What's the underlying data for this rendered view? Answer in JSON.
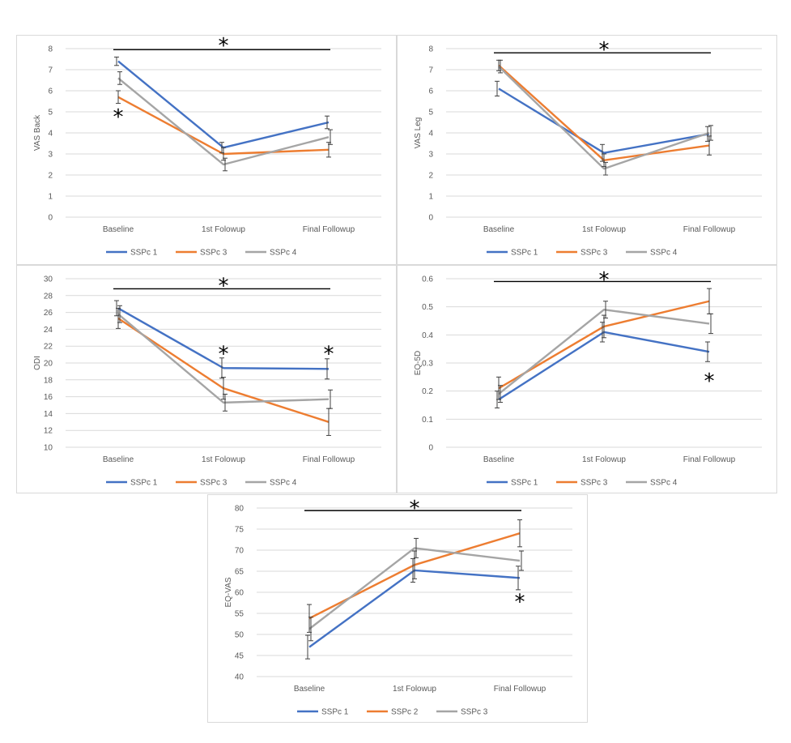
{
  "colors": {
    "series1": "#4472C4",
    "series2": "#ED7D31",
    "series3": "#A5A5A5",
    "grid": "#D9D9D9",
    "sig_line": "#000000",
    "error_bar": "#404040"
  },
  "significance_marker": "*",
  "chart_data": [
    {
      "type": "line",
      "ylabel": "VAS Back",
      "categories": [
        "Baseline",
        "1st Folowup",
        "Final Followup"
      ],
      "ylim": [
        0,
        8
      ],
      "yticks": [
        0,
        1,
        2,
        3,
        4,
        5,
        6,
        7,
        8
      ],
      "grid": true,
      "legend": "bottom",
      "series": [
        {
          "name": "SSPc 1",
          "values": [
            7.4,
            3.3,
            4.5
          ],
          "err": [
            0.2,
            0.25,
            0.3
          ]
        },
        {
          "name": "SSPc 3",
          "values": [
            5.7,
            3.0,
            3.2
          ],
          "err": [
            0.3,
            0.3,
            0.35
          ]
        },
        {
          "name": "SSPc 4",
          "values": [
            6.6,
            2.5,
            3.8
          ],
          "err": [
            0.3,
            0.3,
            0.35
          ]
        }
      ],
      "sig_bar_y": 7.95,
      "annotations": [
        {
          "symbol": "*",
          "x": 1,
          "y": 8.2
        },
        {
          "symbol": "*",
          "x": 0,
          "y": 4.8
        }
      ]
    },
    {
      "type": "line",
      "ylabel": "VAS Leg",
      "categories": [
        "Baseline",
        "1st Folowup",
        "Final Followup"
      ],
      "ylim": [
        0,
        8
      ],
      "yticks": [
        0,
        1,
        2,
        3,
        4,
        5,
        6,
        7,
        8
      ],
      "grid": true,
      "legend": "bottom",
      "series": [
        {
          "name": "SSPc 1",
          "values": [
            6.1,
            3.05,
            3.95
          ],
          "err": [
            0.35,
            0.4,
            0.35
          ]
        },
        {
          "name": "SSPc 3",
          "values": [
            7.2,
            2.7,
            3.4
          ],
          "err": [
            0.25,
            0.3,
            0.45
          ]
        },
        {
          "name": "SSPc 4",
          "values": [
            7.15,
            2.3,
            4.0
          ],
          "err": [
            0.3,
            0.3,
            0.35
          ]
        }
      ],
      "sig_bar_y": 7.8,
      "annotations": [
        {
          "symbol": "*",
          "x": 1,
          "y": 8.0
        }
      ]
    },
    {
      "type": "line",
      "ylabel": "ODI",
      "categories": [
        "Baseline",
        "1st Folowup",
        "Final Followup"
      ],
      "ylim": [
        10,
        30
      ],
      "yticks": [
        10,
        12,
        14,
        16,
        18,
        20,
        22,
        24,
        26,
        28,
        30
      ],
      "grid": true,
      "legend": "bottom",
      "series": [
        {
          "name": "SSPc 1",
          "values": [
            26.5,
            19.4,
            19.3
          ],
          "err": [
            0.9,
            1.2,
            1.2
          ]
        },
        {
          "name": "SSPc 3",
          "values": [
            25.3,
            17.0,
            13.0
          ],
          "err": [
            1.2,
            1.3,
            1.6
          ]
        },
        {
          "name": "SSPc 4",
          "values": [
            25.8,
            15.3,
            15.7
          ],
          "err": [
            1.0,
            1.0,
            1.1
          ]
        }
      ],
      "sig_bar_y": 28.8,
      "annotations": [
        {
          "symbol": "*",
          "x": 1,
          "y": 29.3
        },
        {
          "symbol": "*",
          "x": 1.0,
          "y": 21.2
        },
        {
          "symbol": "*",
          "x": 2.0,
          "y": 21.2
        }
      ]
    },
    {
      "type": "line",
      "ylabel": "EQ-5D",
      "categories": [
        "Baseline",
        "1st Folowup",
        "Final Followup"
      ],
      "ylim": [
        0,
        0.6
      ],
      "yticks": [
        0,
        0.1,
        0.2,
        0.3,
        0.4,
        0.5,
        0.6
      ],
      "grid": true,
      "legend": "bottom",
      "series": [
        {
          "name": "SSPc 1",
          "values": [
            0.17,
            0.41,
            0.34
          ],
          "err": [
            0.03,
            0.035,
            0.035
          ]
        },
        {
          "name": "SSPc 3",
          "values": [
            0.21,
            0.43,
            0.52
          ],
          "err": [
            0.04,
            0.04,
            0.045
          ]
        },
        {
          "name": "SSPc 4",
          "values": [
            0.19,
            0.49,
            0.44
          ],
          "err": [
            0.03,
            0.03,
            0.035
          ]
        }
      ],
      "sig_bar_y": 0.59,
      "annotations": [
        {
          "symbol": "*",
          "x": 1,
          "y": 0.6
        },
        {
          "symbol": "*",
          "x": 2,
          "y": 0.24
        }
      ]
    },
    {
      "type": "line",
      "ylabel": "EQ-VAS",
      "categories": [
        "Baseline",
        "1st Folowup",
        "Final Followup"
      ],
      "ylim": [
        40,
        80
      ],
      "yticks": [
        40,
        45,
        50,
        55,
        60,
        65,
        70,
        75,
        80
      ],
      "grid": true,
      "legend": "bottom",
      "series": [
        {
          "name": "SSPc 1",
          "values": [
            47.0,
            65.2,
            63.4
          ],
          "err": [
            2.8,
            2.8,
            2.8
          ]
        },
        {
          "name": "SSPc 2",
          "values": [
            53.8,
            66.5,
            74.0
          ],
          "err": [
            3.3,
            3.3,
            3.2
          ]
        },
        {
          "name": "SSPc 3",
          "values": [
            51.3,
            70.5,
            67.5
          ],
          "err": [
            2.8,
            2.3,
            2.3
          ]
        }
      ],
      "sig_bar_y": 79.4,
      "annotations": [
        {
          "symbol": "*",
          "x": 1,
          "y": 80.2
        },
        {
          "symbol": "*",
          "x": 2,
          "y": 58.0
        }
      ]
    }
  ]
}
